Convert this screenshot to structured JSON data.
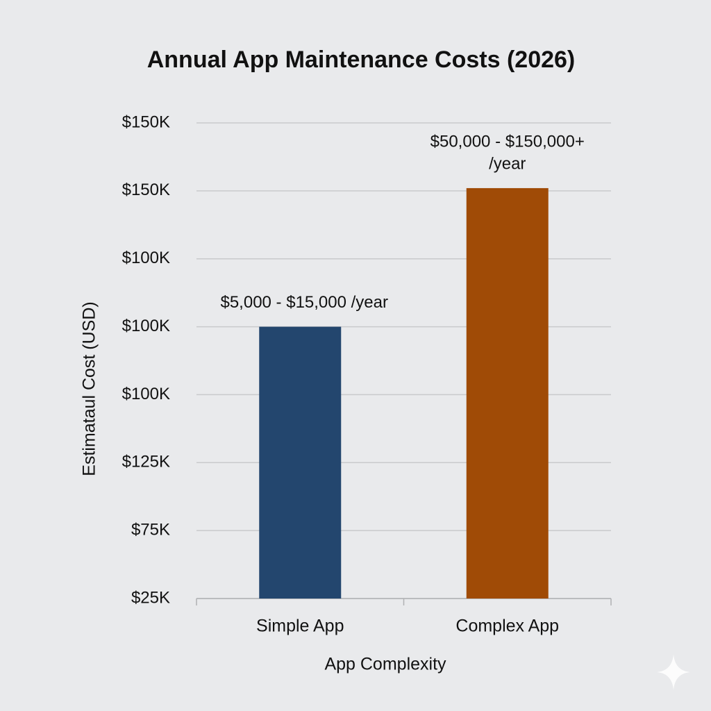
{
  "chart_data": {
    "type": "bar",
    "title": "Annual App Maintenance Costs (2026)",
    "x_label": "App Complexity",
    "y_label": "Estimataul Cost (USD)",
    "categories": [
      "Simple App",
      "Complex App"
    ],
    "values": [
      4,
      6.04
    ],
    "colors": [
      "#23466e",
      "#a04b06"
    ],
    "annotations": [
      [
        "$5,000 - $15,000 /year"
      ],
      [
        "$50,000 - $150,000+",
        "/year"
      ]
    ],
    "ylim": [
      0,
      7
    ],
    "yticks": [
      {
        "value": 0,
        "label": "$25K"
      },
      {
        "value": 1,
        "label": "$75K"
      },
      {
        "value": 2,
        "label": "$125K"
      },
      {
        "value": 3,
        "label": "$100K"
      },
      {
        "value": 4,
        "label": "$100K"
      },
      {
        "value": 5,
        "label": "$100K"
      },
      {
        "value": 6,
        "label": "$150K"
      },
      {
        "value": 7,
        "label": "$150K"
      }
    ],
    "grid": true
  }
}
